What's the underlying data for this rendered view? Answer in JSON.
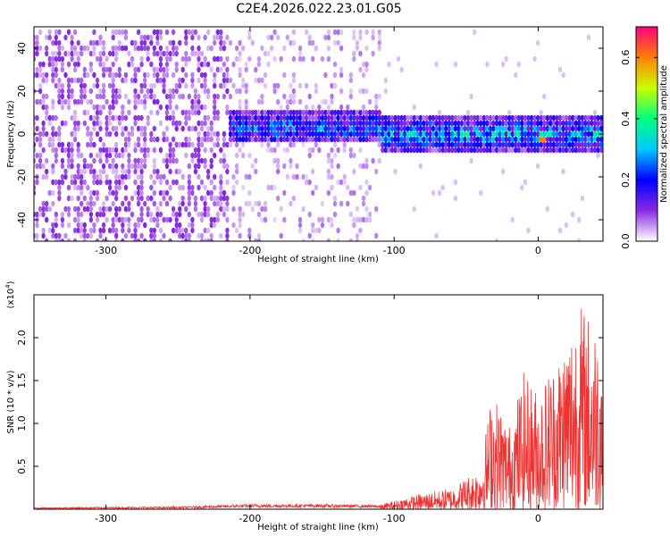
{
  "title": "C2E4.2026.022.23.01.G05",
  "chart_data": [
    {
      "type": "heatmap",
      "xlabel": "Height of straight line (km)",
      "ylabel": "Frequency (Hz)",
      "xlim": [
        -350,
        45
      ],
      "ylim": [
        -50,
        50
      ],
      "x_ticks": [
        -300,
        -200,
        -100,
        0
      ],
      "y_ticks": [
        -40,
        -20,
        0,
        20,
        40
      ],
      "colorbar": {
        "label": "Normalized spectral amplitude",
        "range": [
          0,
          0.7
        ],
        "ticks": [
          0.0,
          0.2,
          0.4,
          0.6
        ],
        "colormap": [
          "#ffffff",
          "#8a2be2",
          "#0000ff",
          "#00c8ff",
          "#00ff80",
          "#c8ff00",
          "#ff8000",
          "#ff0080"
        ]
      },
      "regions": [
        {
          "x_range": [
            -350,
            -215
          ],
          "description_level": "broadband noise",
          "amplitude": 0.08
        },
        {
          "x_range": [
            -215,
            -110
          ],
          "signal_center_hz": 3,
          "signal_halfwidth_hz": 8,
          "amplitude": 0.3
        },
        {
          "x_range": [
            -110,
            45
          ],
          "signal_center_hz": 0,
          "signal_halfwidth_hz": 8,
          "amplitude": 0.35
        },
        {
          "x_range": [
            0,
            5
          ],
          "signal_center_hz": -3,
          "amplitude": 0.6
        }
      ]
    },
    {
      "type": "line",
      "xlabel": "Height of straight line (km)",
      "ylabel": "SNR (10 * v/v)",
      "multiplier_label": "(x10",
      "multiplier_exp": "4",
      "xlim": [
        -350,
        45
      ],
      "ylim": [
        0,
        2.5
      ],
      "x_ticks": [
        -300,
        -200,
        -100,
        0
      ],
      "y_ticks": [
        0.5,
        1.0,
        1.5,
        2.0
      ],
      "series_color": "#ee3333",
      "envelope": [
        {
          "x": -350,
          "y": 0.02
        },
        {
          "x": -250,
          "y": 0.03
        },
        {
          "x": -200,
          "y": 0.06
        },
        {
          "x": -150,
          "y": 0.06
        },
        {
          "x": -110,
          "y": 0.05
        },
        {
          "x": -90,
          "y": 0.15
        },
        {
          "x": -60,
          "y": 0.25
        },
        {
          "x": -40,
          "y": 0.5
        },
        {
          "x": -32,
          "y": 1.4
        },
        {
          "x": -20,
          "y": 1.0
        },
        {
          "x": -10,
          "y": 1.6
        },
        {
          "x": 0,
          "y": 1.4
        },
        {
          "x": 15,
          "y": 1.9
        },
        {
          "x": 28,
          "y": 2.45
        },
        {
          "x": 40,
          "y": 2.2
        }
      ]
    }
  ]
}
